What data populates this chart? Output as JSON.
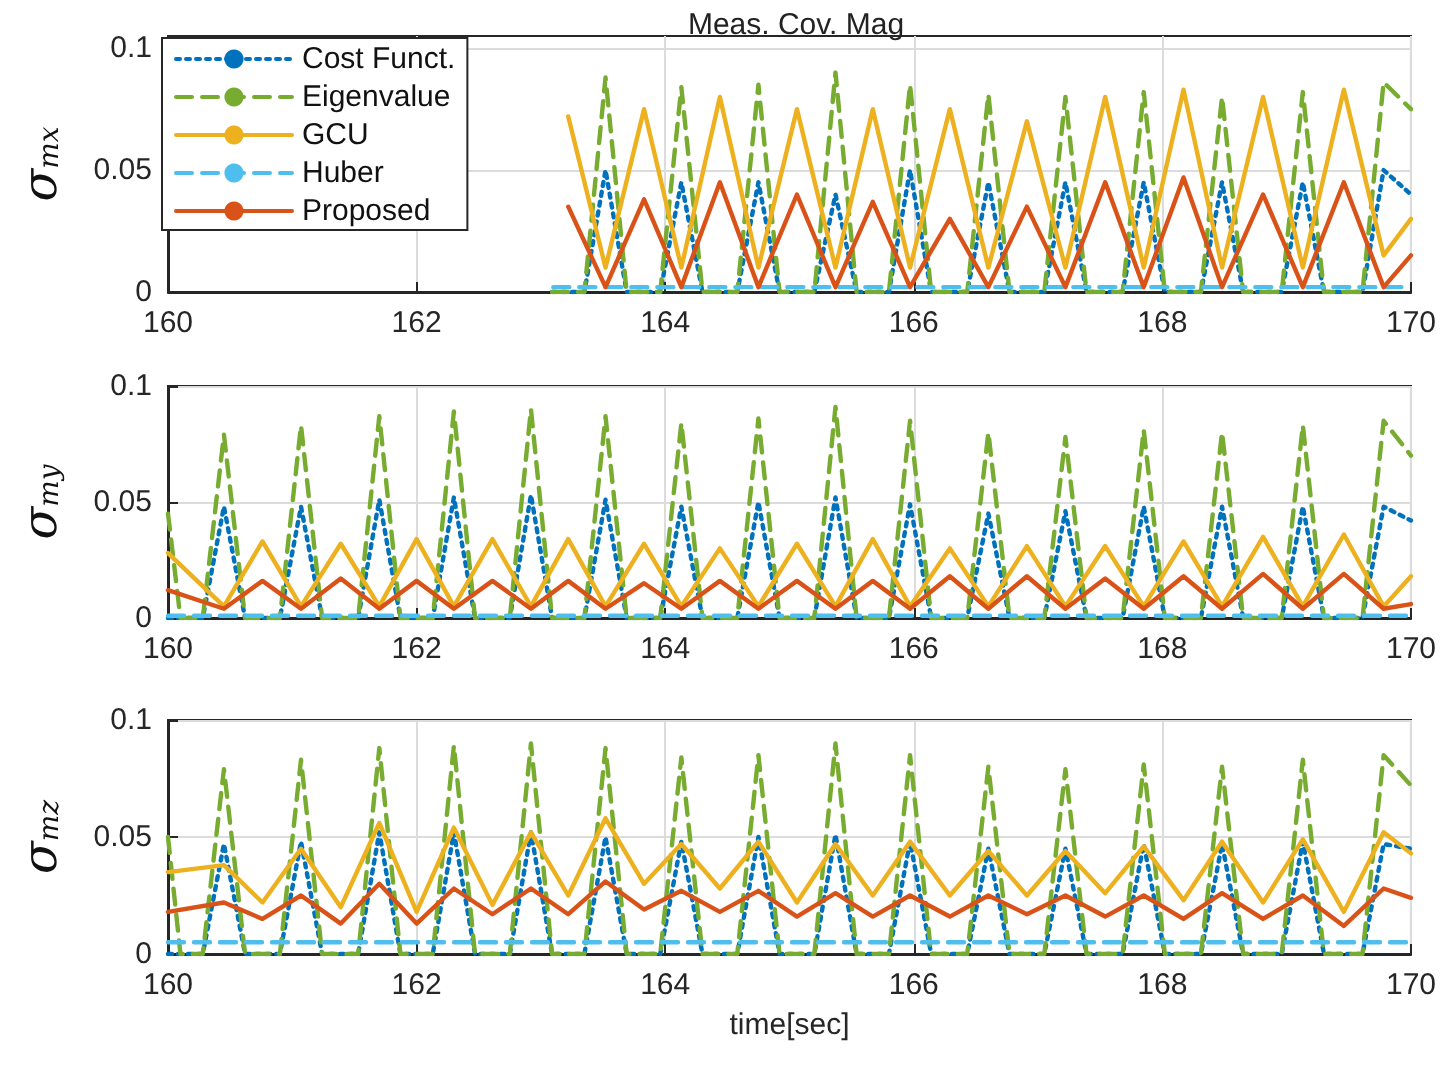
{
  "chart_data": [
    {
      "type": "line",
      "title": "Meas. Cov. Mag",
      "ylabel": "σ$_{mx}$",
      "xlim": [
        160,
        170
      ],
      "xticks": [
        160,
        162,
        164,
        166,
        168,
        170
      ],
      "ylim": [
        0,
        0.105
      ],
      "yticks": [
        0,
        0.05,
        0.1
      ],
      "grid": true,
      "legend": "top left",
      "marker": "none",
      "series": [
        {
          "name": "Cost Funct.",
          "color": "#0072bd",
          "line_style": "dotted",
          "x": [
            163.09,
            163.35,
            163.52,
            163.69,
            163.96,
            164.13,
            164.3,
            164.58,
            164.75,
            164.92,
            165.2,
            165.37,
            165.54,
            165.8,
            165.97,
            166.14,
            166.43,
            166.6,
            166.77,
            167.05,
            167.22,
            167.39,
            167.68,
            167.85,
            168.02,
            168.31,
            168.48,
            168.65,
            168.96,
            169.13,
            169.3,
            169.61,
            169.78,
            170
          ],
          "values": [
            0,
            0,
            0.05,
            0,
            0,
            0.045,
            0,
            0,
            0.045,
            0,
            0,
            0.04,
            0,
            0,
            0.05,
            0,
            0,
            0.045,
            0,
            0,
            0.045,
            0,
            0,
            0.045,
            0,
            0,
            0.045,
            0,
            0,
            0.045,
            0,
            0,
            0.05,
            0.04
          ]
        },
        {
          "name": "Eigenvalue",
          "color": "#77ac30",
          "line_style": "dashed",
          "x": [
            163.09,
            163.35,
            163.52,
            163.69,
            163.96,
            164.13,
            164.3,
            164.58,
            164.75,
            164.92,
            165.2,
            165.37,
            165.54,
            165.8,
            165.97,
            166.14,
            166.43,
            166.6,
            166.77,
            167.05,
            167.22,
            167.39,
            167.68,
            167.85,
            168.02,
            168.31,
            168.48,
            168.65,
            168.96,
            169.13,
            169.3,
            169.61,
            169.78,
            170
          ],
          "values": [
            0,
            0,
            0.088,
            0,
            0,
            0.084,
            0,
            0,
            0.085,
            0,
            0,
            0.09,
            0,
            0,
            0.085,
            0,
            0,
            0.081,
            0,
            0,
            0.08,
            0,
            0,
            0.082,
            0,
            0,
            0.08,
            0,
            0,
            0.082,
            0,
            0,
            0.086,
            0.075
          ]
        },
        {
          "name": "GCU",
          "color": "#edb120",
          "line_style": "solid",
          "x": [
            163.22,
            163.52,
            163.83,
            164.13,
            164.44,
            164.75,
            165.06,
            165.37,
            165.67,
            165.97,
            166.29,
            166.6,
            166.91,
            167.22,
            167.54,
            167.85,
            168.17,
            168.48,
            168.81,
            169.13,
            169.46,
            169.78,
            170
          ],
          "values": [
            0.072,
            0.01,
            0.075,
            0.01,
            0.08,
            0.01,
            0.075,
            0.01,
            0.075,
            0.01,
            0.075,
            0.01,
            0.07,
            0.01,
            0.08,
            0.01,
            0.083,
            0.01,
            0.08,
            0.01,
            0.083,
            0.015,
            0.03
          ]
        },
        {
          "name": "Huber",
          "color": "#4dbeee",
          "line_style": "dashed",
          "x": [
            163.1,
            170
          ],
          "values": [
            0.002,
            0.002
          ]
        },
        {
          "name": "Proposed",
          "color": "#d95319",
          "line_style": "solid",
          "x": [
            163.22,
            163.52,
            163.83,
            164.13,
            164.44,
            164.75,
            165.06,
            165.37,
            165.67,
            165.97,
            166.29,
            166.6,
            166.91,
            167.22,
            167.54,
            167.85,
            168.17,
            168.48,
            168.81,
            169.13,
            169.46,
            169.78,
            170
          ],
          "values": [
            0.035,
            0.002,
            0.038,
            0.002,
            0.045,
            0.002,
            0.04,
            0.002,
            0.037,
            0.002,
            0.03,
            0.002,
            0.035,
            0.002,
            0.045,
            0.002,
            0.047,
            0.002,
            0.04,
            0.002,
            0.045,
            0.002,
            0.015
          ]
        }
      ]
    },
    {
      "type": "line",
      "ylabel": "σ$_{my}$",
      "xlim": [
        160,
        170
      ],
      "xticks": [
        160,
        162,
        164,
        166,
        168,
        170
      ],
      "ylim": [
        0,
        0.1
      ],
      "yticks": [
        0,
        0.05,
        0.1
      ],
      "grid": true,
      "marker": "none",
      "series": [
        {
          "color": "#0072bd",
          "line_style": "dotted",
          "x": [
            160,
            160.1,
            160.28,
            160.45,
            160.62,
            160.9,
            161.07,
            161.24,
            161.53,
            161.7,
            161.87,
            162.13,
            162.3,
            162.47,
            162.75,
            162.92,
            163.09,
            163.35,
            163.52,
            163.69,
            163.96,
            164.13,
            164.3,
            164.58,
            164.75,
            164.92,
            165.2,
            165.37,
            165.54,
            165.8,
            165.97,
            166.14,
            166.43,
            166.6,
            166.77,
            167.05,
            167.22,
            167.39,
            167.68,
            167.85,
            168.02,
            168.31,
            168.48,
            168.65,
            168.96,
            169.13,
            169.3,
            169.61,
            169.78,
            170
          ],
          "values": [
            0,
            0,
            0,
            0.048,
            0,
            0,
            0.048,
            0,
            0,
            0.051,
            0,
            0,
            0.052,
            0,
            0,
            0.053,
            0,
            0,
            0.051,
            0,
            0,
            0.048,
            0,
            0,
            0.05,
            0,
            0,
            0.052,
            0,
            0,
            0.049,
            0,
            0,
            0.045,
            0,
            0,
            0.046,
            0,
            0,
            0.048,
            0,
            0,
            0.048,
            0,
            0,
            0.048,
            0,
            0,
            0.048,
            0.042
          ]
        },
        {
          "color": "#77ac30",
          "line_style": "dashed",
          "x": [
            160,
            160.1,
            160.28,
            160.45,
            160.62,
            160.9,
            161.07,
            161.24,
            161.53,
            161.7,
            161.87,
            162.13,
            162.3,
            162.47,
            162.75,
            162.92,
            163.09,
            163.35,
            163.52,
            163.69,
            163.96,
            164.13,
            164.3,
            164.58,
            164.75,
            164.92,
            165.2,
            165.37,
            165.54,
            165.8,
            165.97,
            166.14,
            166.43,
            166.6,
            166.77,
            167.05,
            167.22,
            167.39,
            167.68,
            167.85,
            168.02,
            168.31,
            168.48,
            168.65,
            168.96,
            169.13,
            169.3,
            169.61,
            169.78,
            170
          ],
          "values": [
            0.045,
            0,
            0,
            0.079,
            0,
            0,
            0.083,
            0,
            0,
            0.087,
            0,
            0,
            0.089,
            0,
            0,
            0.09,
            0,
            0,
            0.087,
            0,
            0,
            0.084,
            0,
            0,
            0.086,
            0,
            0,
            0.091,
            0,
            0,
            0.085,
            0,
            0,
            0.08,
            0,
            0,
            0.078,
            0,
            0,
            0.081,
            0,
            0,
            0.08,
            0,
            0,
            0.083,
            0,
            0,
            0.085,
            0.07
          ]
        },
        {
          "color": "#edb120",
          "line_style": "solid",
          "x": [
            160,
            160.45,
            160.76,
            161.07,
            161.39,
            161.7,
            162,
            162.3,
            162.61,
            162.92,
            163.22,
            163.52,
            163.83,
            164.13,
            164.44,
            164.75,
            165.06,
            165.37,
            165.67,
            165.97,
            166.29,
            166.6,
            166.91,
            167.22,
            167.54,
            167.85,
            168.17,
            168.48,
            168.81,
            169.13,
            169.46,
            169.78,
            170
          ],
          "values": [
            0.028,
            0.005,
            0.033,
            0.005,
            0.032,
            0.005,
            0.034,
            0.005,
            0.034,
            0.005,
            0.034,
            0.005,
            0.032,
            0.005,
            0.03,
            0.005,
            0.032,
            0.005,
            0.034,
            0.005,
            0.03,
            0.005,
            0.031,
            0.005,
            0.031,
            0.005,
            0.033,
            0.005,
            0.035,
            0.005,
            0.036,
            0.005,
            0.018
          ]
        },
        {
          "color": "#4dbeee",
          "line_style": "dashed",
          "x": [
            160,
            170
          ],
          "values": [
            0.001,
            0.001
          ]
        },
        {
          "color": "#d95319",
          "line_style": "solid",
          "x": [
            160,
            160.45,
            160.76,
            161.07,
            161.39,
            161.7,
            162,
            162.3,
            162.61,
            162.92,
            163.22,
            163.52,
            163.83,
            164.13,
            164.44,
            164.75,
            165.06,
            165.37,
            165.67,
            165.97,
            166.29,
            166.6,
            166.91,
            167.22,
            167.54,
            167.85,
            168.17,
            168.48,
            168.81,
            169.13,
            169.46,
            169.78,
            170
          ],
          "values": [
            0.012,
            0.004,
            0.016,
            0.004,
            0.017,
            0.004,
            0.016,
            0.004,
            0.016,
            0.004,
            0.016,
            0.004,
            0.015,
            0.004,
            0.016,
            0.004,
            0.016,
            0.004,
            0.016,
            0.004,
            0.018,
            0.004,
            0.018,
            0.004,
            0.017,
            0.004,
            0.018,
            0.004,
            0.019,
            0.004,
            0.019,
            0.004,
            0.006
          ]
        }
      ]
    },
    {
      "type": "line",
      "ylabel": "σ$_{mz}$",
      "xlabel": "time[sec]",
      "xlim": [
        160,
        170
      ],
      "xticks": [
        160,
        162,
        164,
        166,
        168,
        170
      ],
      "ylim": [
        0,
        0.1
      ],
      "yticks": [
        0,
        0.05,
        0.1
      ],
      "grid": true,
      "marker": "none",
      "series": [
        {
          "color": "#0072bd",
          "line_style": "dotted",
          "x": [
            160,
            160.1,
            160.28,
            160.45,
            160.62,
            160.9,
            161.07,
            161.24,
            161.53,
            161.7,
            161.87,
            162.13,
            162.3,
            162.47,
            162.75,
            162.92,
            163.09,
            163.35,
            163.52,
            163.69,
            163.96,
            164.13,
            164.3,
            164.58,
            164.75,
            164.92,
            165.2,
            165.37,
            165.54,
            165.8,
            165.97,
            166.14,
            166.43,
            166.6,
            166.77,
            167.05,
            167.22,
            167.39,
            167.68,
            167.85,
            168.02,
            168.31,
            168.48,
            168.65,
            168.96,
            169.13,
            169.3,
            169.61,
            169.78,
            170
          ],
          "values": [
            0,
            0,
            0,
            0.047,
            0,
            0,
            0.048,
            0,
            0,
            0.052,
            0,
            0,
            0.052,
            0,
            0,
            0.052,
            0,
            0,
            0.05,
            0,
            0,
            0.048,
            0,
            0,
            0.05,
            0,
            0,
            0.051,
            0,
            0,
            0.048,
            0,
            0,
            0.045,
            0,
            0,
            0.045,
            0,
            0,
            0.047,
            0,
            0,
            0.047,
            0,
            0,
            0.048,
            0,
            0,
            0.047,
            0.045
          ]
        },
        {
          "color": "#77ac30",
          "line_style": "dashed",
          "x": [
            160,
            160.1,
            160.28,
            160.45,
            160.62,
            160.9,
            161.07,
            161.24,
            161.53,
            161.7,
            161.87,
            162.13,
            162.3,
            162.47,
            162.75,
            162.92,
            163.09,
            163.35,
            163.52,
            163.69,
            163.96,
            164.13,
            164.3,
            164.58,
            164.75,
            164.92,
            165.2,
            165.37,
            165.54,
            165.8,
            165.97,
            166.14,
            166.43,
            166.6,
            166.77,
            167.05,
            167.22,
            167.39,
            167.68,
            167.85,
            168.02,
            168.31,
            168.48,
            168.65,
            168.96,
            169.13,
            169.3,
            169.61,
            169.78,
            170
          ],
          "values": [
            0.05,
            0,
            0,
            0.079,
            0,
            0,
            0.083,
            0,
            0,
            0.088,
            0,
            0,
            0.089,
            0,
            0,
            0.09,
            0,
            0,
            0.088,
            0,
            0,
            0.084,
            0,
            0,
            0.085,
            0,
            0,
            0.09,
            0,
            0,
            0.085,
            0,
            0,
            0.08,
            0,
            0,
            0.079,
            0,
            0,
            0.081,
            0,
            0,
            0.08,
            0,
            0,
            0.083,
            0,
            0,
            0.085,
            0.072
          ]
        },
        {
          "color": "#edb120",
          "line_style": "solid",
          "x": [
            160,
            160.45,
            160.76,
            161.07,
            161.39,
            161.7,
            162,
            162.3,
            162.61,
            162.92,
            163.22,
            163.52,
            163.83,
            164.13,
            164.44,
            164.75,
            165.06,
            165.37,
            165.67,
            165.97,
            166.29,
            166.6,
            166.91,
            167.22,
            167.54,
            167.85,
            168.17,
            168.48,
            168.81,
            169.13,
            169.46,
            169.78,
            170
          ],
          "values": [
            0.035,
            0.038,
            0.022,
            0.045,
            0.02,
            0.056,
            0.018,
            0.054,
            0.021,
            0.052,
            0.025,
            0.058,
            0.03,
            0.047,
            0.028,
            0.048,
            0.022,
            0.047,
            0.025,
            0.048,
            0.025,
            0.044,
            0.025,
            0.044,
            0.026,
            0.046,
            0.023,
            0.048,
            0.022,
            0.049,
            0.018,
            0.052,
            0.043
          ]
        },
        {
          "color": "#4dbeee",
          "line_style": "dashed",
          "x": [
            160,
            170
          ],
          "values": [
            0.005,
            0.005
          ]
        },
        {
          "color": "#d95319",
          "line_style": "solid",
          "x": [
            160,
            160.45,
            160.76,
            161.07,
            161.39,
            161.7,
            162,
            162.3,
            162.61,
            162.92,
            163.22,
            163.52,
            163.83,
            164.13,
            164.44,
            164.75,
            165.06,
            165.37,
            165.67,
            165.97,
            166.29,
            166.6,
            166.91,
            167.22,
            167.54,
            167.85,
            168.17,
            168.48,
            168.81,
            169.13,
            169.46,
            169.78,
            170
          ],
          "values": [
            0.018,
            0.022,
            0.015,
            0.025,
            0.013,
            0.03,
            0.013,
            0.028,
            0.017,
            0.028,
            0.017,
            0.031,
            0.019,
            0.027,
            0.018,
            0.027,
            0.016,
            0.026,
            0.016,
            0.025,
            0.016,
            0.025,
            0.017,
            0.025,
            0.016,
            0.025,
            0.015,
            0.026,
            0.015,
            0.025,
            0.012,
            0.028,
            0.024
          ]
        }
      ]
    }
  ]
}
